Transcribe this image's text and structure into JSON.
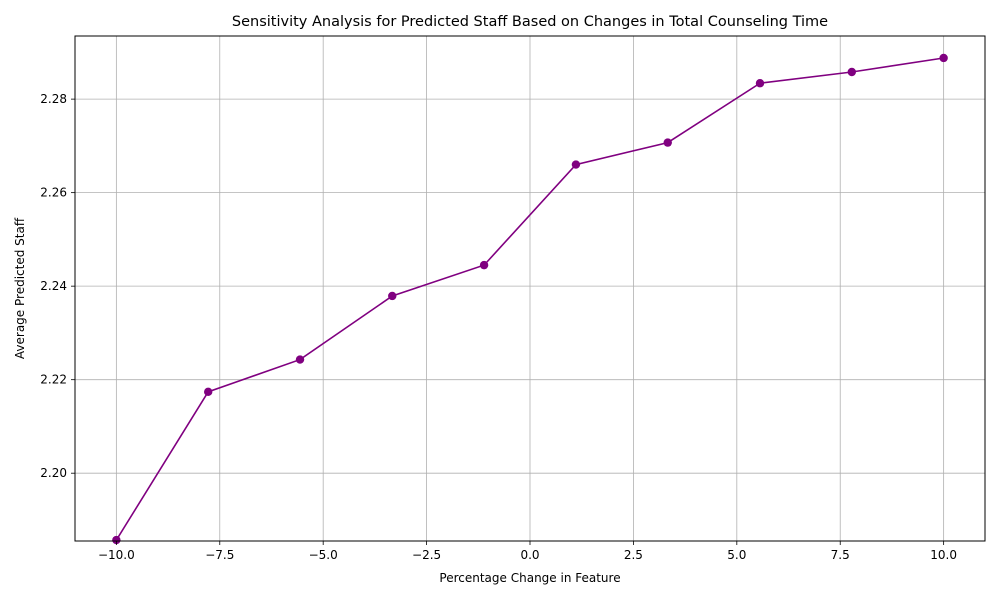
{
  "chart_data": {
    "type": "line",
    "title": "Sensitivity Analysis for Predicted Staff Based on Changes in Total Counseling Time",
    "xlabel": "Percentage Change in Feature",
    "ylabel": "Average Predicted Staff",
    "xlim": [
      -11.0,
      11.0
    ],
    "ylim": [
      2.1855,
      2.2935
    ],
    "x_ticks": [
      -10.0,
      -7.5,
      -5.0,
      -2.5,
      0.0,
      2.5,
      5.0,
      7.5,
      10.0
    ],
    "x_tick_labels": [
      "−10.0",
      "−7.5",
      "−5.0",
      "−2.5",
      "0.0",
      "2.5",
      "5.0",
      "7.5",
      "10.0"
    ],
    "y_ticks": [
      2.2,
      2.22,
      2.24,
      2.26,
      2.28
    ],
    "y_tick_labels": [
      "2.20",
      "2.22",
      "2.24",
      "2.26",
      "2.28"
    ],
    "grid": true,
    "marker": "circle",
    "series": [
      {
        "color": "#800080",
        "x": [
          -10.0,
          -7.78,
          -5.56,
          -3.33,
          -1.11,
          1.11,
          3.33,
          5.56,
          7.78,
          10.0
        ],
        "y": [
          2.1857,
          2.2174,
          2.2243,
          2.2379,
          2.2445,
          2.266,
          2.2707,
          2.2834,
          2.2858,
          2.2888
        ]
      }
    ]
  }
}
